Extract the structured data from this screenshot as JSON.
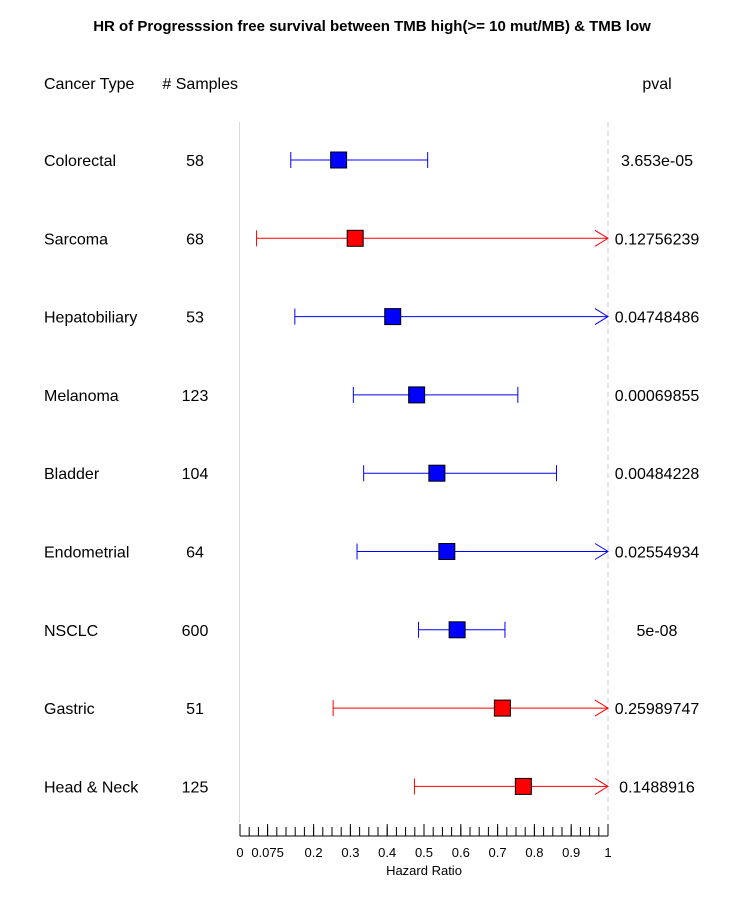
{
  "chart_data": {
    "type": "forest",
    "title": "HR of Progresssion free survival between TMB high(>= 10 mut/MB) & TMB low",
    "columns": {
      "cancer_type": "Cancer Type",
      "samples": "# Samples",
      "pval": "pval"
    },
    "xlabel": "Hazard Ratio",
    "xlim": [
      0,
      1
    ],
    "x_tick_labels": [
      "0",
      "0.075",
      "0.2",
      "0.3",
      "0.4",
      "0.5",
      "0.6",
      "0.7",
      "0.8",
      "0.9",
      "1"
    ],
    "x_tick_values": [
      0,
      0.075,
      0.2,
      0.3,
      0.4,
      0.5,
      0.6,
      0.7,
      0.8,
      0.9,
      1
    ],
    "reference_line": 1,
    "colors": {
      "significant": "#0000ff",
      "not_significant": "#ff0000"
    },
    "rows": [
      {
        "cancer_type": "Colorectal",
        "samples": "58",
        "hr": 0.268,
        "lower": 0.138,
        "upper": 0.51,
        "arrow": false,
        "significant": true,
        "pval": "3.653e-05"
      },
      {
        "cancer_type": "Sarcoma",
        "samples": "68",
        "hr": 0.313,
        "lower": 0.045,
        "upper": 1.0,
        "arrow": true,
        "significant": false,
        "pval": "0.12756239"
      },
      {
        "cancer_type": "Hepatobiliary",
        "samples": "53",
        "hr": 0.415,
        "lower": 0.149,
        "upper": 1.0,
        "arrow": true,
        "significant": true,
        "pval": "0.04748486"
      },
      {
        "cancer_type": "Melanoma",
        "samples": "123",
        "hr": 0.48,
        "lower": 0.308,
        "upper": 0.755,
        "arrow": false,
        "significant": true,
        "pval": "0.00069855"
      },
      {
        "cancer_type": "Bladder",
        "samples": "104",
        "hr": 0.535,
        "lower": 0.336,
        "upper": 0.86,
        "arrow": false,
        "significant": true,
        "pval": "0.00484228"
      },
      {
        "cancer_type": "Endometrial",
        "samples": "64",
        "hr": 0.562,
        "lower": 0.318,
        "upper": 1.0,
        "arrow": true,
        "significant": true,
        "pval": "0.02554934"
      },
      {
        "cancer_type": "NSCLC",
        "samples": "600",
        "hr": 0.59,
        "lower": 0.485,
        "upper": 0.72,
        "arrow": false,
        "significant": true,
        "pval": "5e-08"
      },
      {
        "cancer_type": "Gastric",
        "samples": "51",
        "hr": 0.713,
        "lower": 0.253,
        "upper": 1.0,
        "arrow": true,
        "significant": false,
        "pval": "0.25989747"
      },
      {
        "cancer_type": "Head & Neck",
        "samples": "125",
        "hr": 0.77,
        "lower": 0.474,
        "upper": 1.0,
        "arrow": true,
        "significant": false,
        "pval": "0.1488916"
      }
    ]
  }
}
